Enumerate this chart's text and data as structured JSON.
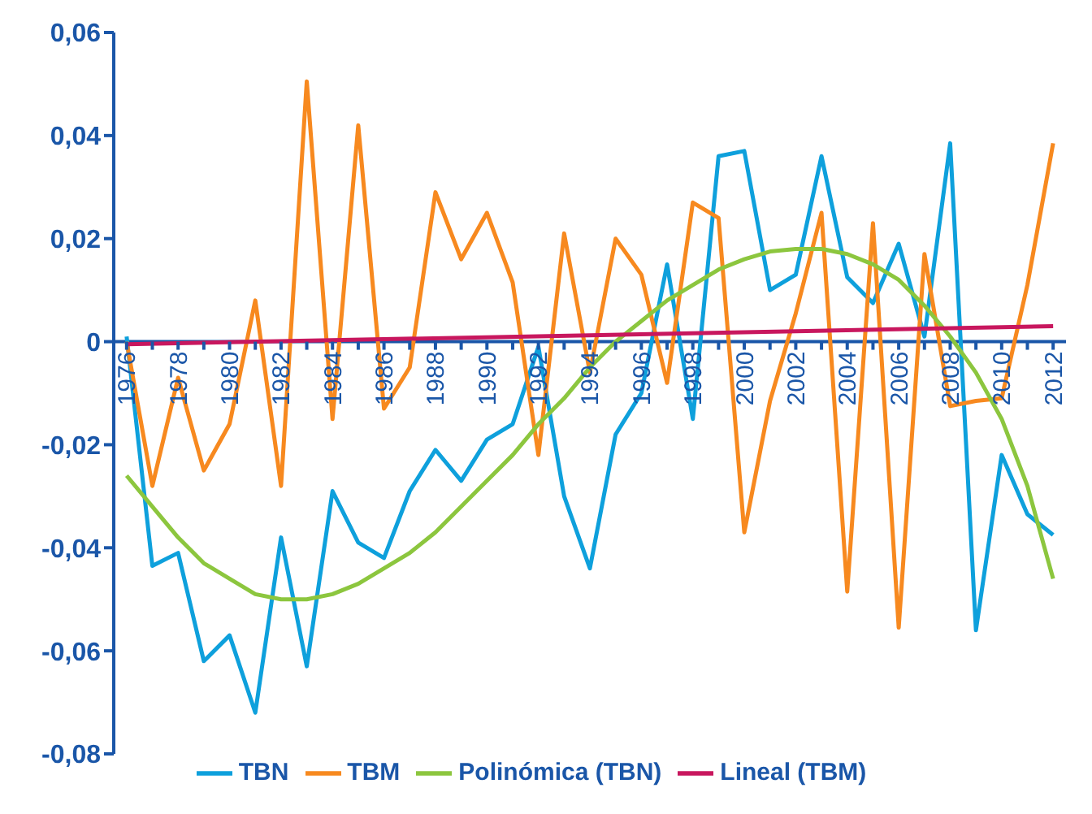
{
  "chart_data": {
    "type": "line",
    "x": [
      1976,
      1977,
      1978,
      1979,
      1980,
      1981,
      1982,
      1983,
      1984,
      1985,
      1986,
      1987,
      1988,
      1989,
      1990,
      1991,
      1992,
      1993,
      1994,
      1995,
      1996,
      1997,
      1998,
      1999,
      2000,
      2001,
      2002,
      2003,
      2004,
      2005,
      2006,
      2007,
      2008,
      2009,
      2010,
      2011,
      2012
    ],
    "series": [
      {
        "name": "TBN",
        "color": "#0ea0dc",
        "values": [
          0.001,
          -0.0435,
          -0.041,
          -0.062,
          -0.057,
          -0.072,
          -0.038,
          -0.063,
          -0.029,
          -0.039,
          -0.042,
          -0.029,
          -0.021,
          -0.027,
          -0.019,
          -0.016,
          -0.001,
          -0.03,
          -0.044,
          -0.018,
          -0.01,
          0.015,
          -0.015,
          0.036,
          0.037,
          0.01,
          0.013,
          0.036,
          0.0125,
          0.0075,
          0.019,
          0.001,
          0.0385,
          -0.056,
          -0.022,
          -0.0335,
          -0.0375
        ]
      },
      {
        "name": "TBM",
        "color": "#f7891f",
        "values": [
          0,
          -0.028,
          -0.007,
          -0.025,
          -0.016,
          0.008,
          -0.028,
          0.0505,
          -0.015,
          0.042,
          -0.013,
          -0.005,
          0.029,
          0.016,
          0.025,
          0.0115,
          -0.022,
          0.021,
          -0.006,
          0.02,
          0.013,
          -0.008,
          0.027,
          0.024,
          -0.037,
          -0.0115,
          0.0055,
          0.025,
          -0.0485,
          0.023,
          -0.0555,
          0.017,
          -0.0125,
          -0.0115,
          -0.011,
          0.011,
          0.0385
        ]
      },
      {
        "name": "Polinómica (TBN)",
        "color": "#8cc63e",
        "values": [
          -0.026,
          -0.032,
          -0.038,
          -0.043,
          -0.046,
          -0.049,
          -0.05,
          -0.05,
          -0.049,
          -0.047,
          -0.044,
          -0.041,
          -0.037,
          -0.032,
          -0.027,
          -0.022,
          -0.016,
          -0.011,
          -0.005,
          0,
          0.004,
          0.008,
          0.011,
          0.014,
          0.016,
          0.0175,
          0.018,
          0.018,
          0.017,
          0.015,
          0.012,
          0.007,
          0.001,
          -0.006,
          -0.015,
          -0.028,
          -0.046
        ]
      },
      {
        "name": "Lineal (TBM)",
        "color": "#c8175e",
        "x": [
          1976,
          2012
        ],
        "values": [
          -0.0005,
          0.003
        ]
      }
    ],
    "xlim": [
      1975.5,
      2012.5
    ],
    "xticks": [
      1976,
      {
        "value": 1977,
        "label": null
      },
      1978,
      {
        "value": 1979,
        "label": null
      },
      1980,
      {
        "value": 1981,
        "label": null
      },
      1982,
      {
        "value": 1983,
        "label": null
      },
      1984,
      {
        "value": 1985,
        "label": null
      },
      1986,
      {
        "value": 1987,
        "label": null
      },
      1988,
      {
        "value": 1989,
        "label": null
      },
      1990,
      {
        "value": 1991,
        "label": null
      },
      1992,
      {
        "value": 1993,
        "label": null
      },
      1994,
      {
        "value": 1995,
        "label": null
      },
      1996,
      {
        "value": 1997,
        "label": null
      },
      1998,
      {
        "value": 1999,
        "label": null
      },
      2000,
      {
        "value": 2001,
        "label": null
      },
      2002,
      {
        "value": 2003,
        "label": null
      },
      2004,
      {
        "value": 2005,
        "label": null
      },
      2006,
      {
        "value": 2007,
        "label": null
      },
      2008,
      {
        "value": 2009,
        "label": null
      },
      2010,
      {
        "value": 2011,
        "label": null
      },
      2012
    ],
    "ylim": [
      -0.08,
      0.06
    ],
    "yticks": [
      {
        "value": 0.06,
        "label": "0,06"
      },
      {
        "value": 0.04,
        "label": "0,04"
      },
      {
        "value": 0.02,
        "label": "0,02"
      },
      {
        "value": 0,
        "label": "0"
      },
      {
        "value": -0.02,
        "label": "-0,02"
      },
      {
        "value": -0.04,
        "label": "-0,04"
      },
      {
        "value": -0.06,
        "label": "-0,06"
      },
      {
        "value": -0.08,
        "label": "-0,08"
      }
    ],
    "grid": false,
    "legend": "bottom",
    "marker": "none",
    "line_style": "solid"
  }
}
